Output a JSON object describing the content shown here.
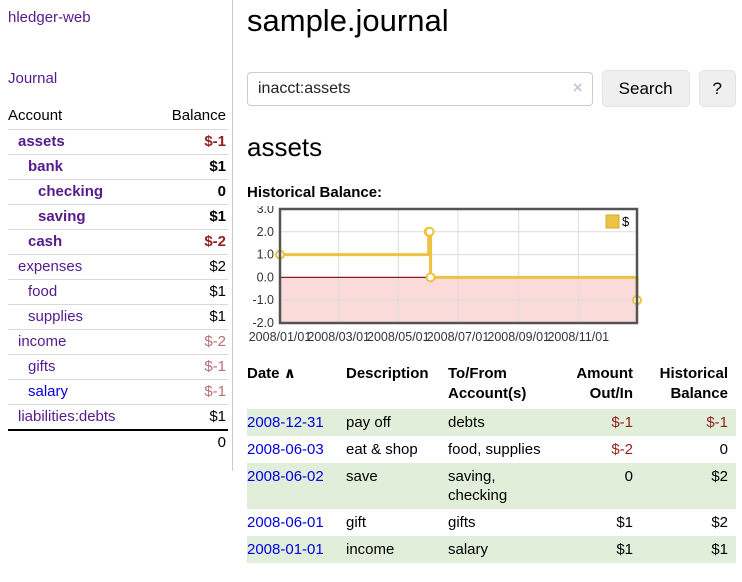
{
  "app": {
    "title": "hledger-web"
  },
  "colors": {
    "link_purple": "#551a8b",
    "link_blue": "#0000dd",
    "negative_strong": "#941f1f",
    "negative_soft": "#b76e76",
    "row_highlight_green": "#e1eeda",
    "series_yellow": "#edc240"
  },
  "sidebar": {
    "journal_label": "Journal",
    "accounts_table": {
      "headers": [
        "Account",
        "Balance"
      ],
      "rows": [
        {
          "name": "assets",
          "indent": 1,
          "bold": true,
          "balance": "$-1",
          "negative": "strong"
        },
        {
          "name": "bank",
          "indent": 2,
          "bold": true,
          "balance": "$1"
        },
        {
          "name": "checking",
          "indent": 3,
          "bold": true,
          "balance": "0"
        },
        {
          "name": "saving",
          "indent": 3,
          "bold": true,
          "balance": "$1"
        },
        {
          "name": "cash",
          "indent": 2,
          "bold": true,
          "balance": "$-2",
          "negative": "strong"
        },
        {
          "name": "expenses",
          "indent": 1,
          "bold": false,
          "balance": "$2"
        },
        {
          "name": "food",
          "indent": 2,
          "bold": false,
          "balance": "$1"
        },
        {
          "name": "supplies",
          "indent": 2,
          "bold": false,
          "balance": "$1"
        },
        {
          "name": "income",
          "indent": 1,
          "bold": false,
          "balance": "$-2",
          "negative": "soft"
        },
        {
          "name": "gifts",
          "indent": 2,
          "bold": false,
          "balance": "$-1",
          "negative": "soft"
        },
        {
          "name": "salary",
          "indent": 2,
          "bold": false,
          "balance": "$-1",
          "negative": "soft",
          "link": "blue"
        },
        {
          "name": "liabilities:debts",
          "indent": 1,
          "bold": false,
          "balance": "$1"
        }
      ],
      "total": "0"
    }
  },
  "header": {
    "title": "sample.journal"
  },
  "search": {
    "value": "inacct:assets",
    "clear_icon": "×",
    "button_label": "Search",
    "help_label": "?"
  },
  "report": {
    "title": "assets"
  },
  "chart_data": {
    "type": "line",
    "step": true,
    "title": "Historical Balance:",
    "xlabel": "",
    "ylabel": "",
    "legend_position": "top-right",
    "x_epoch": "2008/01/01",
    "x_max_days": 365,
    "ylim": [
      -2,
      3
    ],
    "y_ticks": [
      "3.0",
      "2.0",
      "1.0",
      "0.0",
      "-1.0",
      "-2.0"
    ],
    "x_ticks": [
      "2008/01/01",
      "2008/03/01",
      "2008/05/01",
      "2008/07/01",
      "2008/09/01",
      "2008/11/01"
    ],
    "series": [
      {
        "name": "$",
        "color": "#edc240",
        "points": [
          [
            "2008-01-01",
            1
          ],
          [
            "2008-06-01",
            2
          ],
          [
            "2008-06-02",
            2
          ],
          [
            "2008-06-03",
            0
          ],
          [
            "2008-12-31",
            -1
          ]
        ]
      }
    ],
    "styles": {
      "negative_fill": "#fbdada",
      "zero_line": "#8b1a1a",
      "grid": "#dcdcdc",
      "border": "#545454",
      "marker_fill": "#ffffff",
      "legend_swatch_border": "#cfa93c",
      "tick_text": "#333333"
    }
  },
  "transactions": {
    "headers": {
      "date": "Date",
      "sort_icon": "∧",
      "description": "Description",
      "accounts": "To/From Account(s)",
      "amount": "Amount Out/In",
      "balance": "Historical Balance"
    },
    "rows": [
      {
        "date": "2008-12-31",
        "description": "pay off",
        "accounts": "debts",
        "amount": "$-1",
        "balance": "$-1",
        "amount_neg": true,
        "balance_neg": true
      },
      {
        "date": "2008-06-03",
        "description": "eat & shop",
        "accounts": "food, supplies",
        "amount": "$-2",
        "balance": "0",
        "amount_neg": true
      },
      {
        "date": "2008-06-02",
        "description": "save",
        "accounts": "saving, checking",
        "amount": "0",
        "balance": "$2"
      },
      {
        "date": "2008-06-01",
        "description": "gift",
        "accounts": "gifts",
        "amount": "$1",
        "balance": "$2"
      },
      {
        "date": "2008-01-01",
        "description": "income",
        "accounts": "salary",
        "amount": "$1",
        "balance": "$1"
      }
    ]
  }
}
